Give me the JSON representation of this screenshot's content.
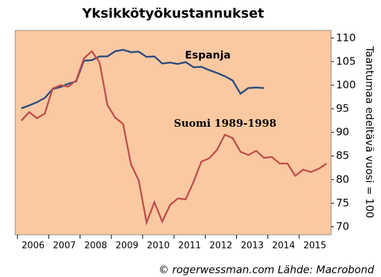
{
  "chart_data": {
    "type": "line",
    "title": "Yksikkötyökustannukset",
    "y_label": "Taantumaa edeltävä vuosi = 100",
    "source": "© rogerwessman.com Lähde: Macrobond",
    "annotations": [
      "Espanja",
      "Suomi 1989-1998"
    ],
    "xlim": [
      2005.93,
      2016.02
    ],
    "xticks": [
      2006,
      2007,
      2008,
      2009,
      2010,
      2011,
      2012,
      2013,
      2014,
      2015
    ],
    "ylim": [
      68.3,
      111.6
    ],
    "yticks": [
      70,
      75,
      80,
      85,
      90,
      95,
      100,
      105,
      110
    ],
    "grid": false,
    "background": "#fbc9a1",
    "series": [
      {
        "name": "Espanja",
        "color": "#2a4a7f",
        "x": [
          2006.125,
          2006.375,
          2006.625,
          2006.875,
          2007.125,
          2007.375,
          2007.625,
          2007.875,
          2008.125,
          2008.375,
          2008.625,
          2008.875,
          2009.125,
          2009.375,
          2009.625,
          2009.875,
          2010.125,
          2010.375,
          2010.625,
          2010.875,
          2011.125,
          2011.375,
          2011.625,
          2011.875,
          2012.125,
          2012.375,
          2012.625,
          2012.875,
          2013.125,
          2013.375,
          2013.625,
          2013.875
        ],
        "values": [
          95.1,
          95.7,
          96.4,
          97.3,
          99.2,
          99.6,
          100.3,
          100.8,
          105.2,
          105.3,
          106.1,
          106.1,
          107.2,
          107.5,
          107.0,
          107.1,
          106.0,
          106.1,
          104.6,
          104.8,
          104.5,
          104.9,
          103.8,
          103.9,
          103.2,
          102.6,
          101.9,
          101.0,
          98.2,
          99.4,
          99.5,
          99.4
        ]
      },
      {
        "name": "Suomi 1989-1998",
        "color": "#c0504d",
        "x": [
          2006.125,
          2006.375,
          2006.625,
          2006.875,
          2007.125,
          2007.375,
          2007.625,
          2007.875,
          2008.125,
          2008.375,
          2008.625,
          2008.875,
          2009.125,
          2009.375,
          2009.625,
          2009.875,
          2010.125,
          2010.375,
          2010.625,
          2010.875,
          2011.125,
          2011.375,
          2011.625,
          2011.875,
          2012.125,
          2012.375,
          2012.625,
          2012.875,
          2013.125,
          2013.375,
          2013.625,
          2013.875,
          2014.125,
          2014.375,
          2014.625,
          2014.875,
          2015.125,
          2015.375,
          2015.625,
          2015.875
        ],
        "values": [
          92.5,
          94.3,
          93.0,
          94.0,
          99.3,
          100.0,
          99.7,
          101.0,
          105.7,
          107.2,
          104.8,
          95.8,
          93.1,
          91.8,
          83.3,
          79.8,
          70.9,
          75.2,
          71.1,
          74.6,
          76.0,
          75.8,
          79.5,
          83.8,
          84.5,
          86.3,
          89.5,
          88.8,
          85.9,
          85.2,
          86.1,
          84.6,
          84.8,
          83.4,
          83.4,
          80.8,
          82.1,
          81.6,
          82.3,
          83.4
        ]
      }
    ]
  }
}
